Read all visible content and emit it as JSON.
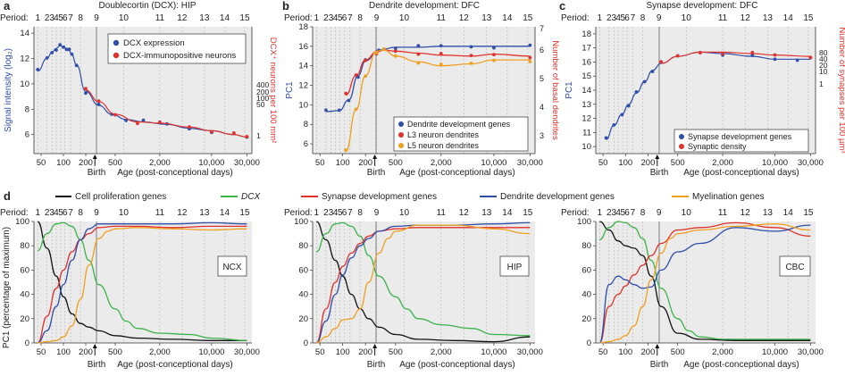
{
  "period_label": "Period:",
  "periods": [
    "1",
    "2",
    "3",
    "4",
    "5",
    "6",
    "7",
    "8",
    "9",
    "10",
    "11",
    "12",
    "13",
    "14",
    "15"
  ],
  "x_ticks": [
    "50",
    "100",
    "200",
    "500",
    "2,000",
    "10,000",
    "30,000"
  ],
  "birth_label": "Birth",
  "x_axis_label": "Age (post-conceptional days)",
  "colors": {
    "blue": "#2f4fa8",
    "red": "#e0322c",
    "orange": "#f0a020",
    "green": "#39b34a",
    "black": "#111111"
  },
  "panel_a": {
    "letter": "a",
    "title": "Doublecortin (DCX): HIP",
    "ylabel": "Signal intensity (log₂)",
    "y2label": "DCX⁺ neurons per 100 mm²",
    "y_ticks": [
      "6",
      "8",
      "10",
      "12",
      "14"
    ],
    "y2_ticks": [
      "400",
      "200",
      "100",
      "50",
      "1"
    ],
    "legend": [
      "DCX expression",
      "DCX-immunopositive neurons"
    ]
  },
  "panel_b": {
    "letter": "b",
    "title": "Dendrite development: DFC",
    "ylabel": "PC1",
    "y2label": "Number of basal dendrites",
    "y_ticks": [
      "6",
      "8",
      "10",
      "12",
      "14",
      "16",
      "18"
    ],
    "y2_ticks": [
      "3",
      "4",
      "5",
      "6",
      "7"
    ],
    "legend": [
      "Dendrite development genes",
      "L3 neuron dendrites",
      "L5 neuron dendrites"
    ]
  },
  "panel_c": {
    "letter": "c",
    "title": "Synapse development: DFC",
    "ylabel": "PC1",
    "y2label": "Number of synapses per 100 µm³",
    "y_ticks": [
      "10",
      "11",
      "12",
      "13",
      "14",
      "15",
      "16",
      "17",
      "18"
    ],
    "y2_ticks": [
      "80",
      "40",
      "20",
      "10",
      "1"
    ],
    "legend": [
      "Synapse development genes",
      "Synaptic density"
    ]
  },
  "panel_d": {
    "letter": "d",
    "legend": [
      "Cell proliferation genes",
      "DCX",
      "Synapse development genes",
      "Dendrite development genes",
      "Myelination genes"
    ],
    "ylabel": "PC1 (percentage of maximum)",
    "y_ticks": [
      "0",
      "20",
      "40",
      "60",
      "80",
      "100"
    ],
    "regions": [
      "NCX",
      "HIP",
      "CBC"
    ]
  },
  "chart_data": [
    {
      "type": "scatter",
      "panel": "a",
      "title": "Doublecortin (DCX): HIP",
      "xlabel": "Age (post-conceptional days)",
      "ylabel": "Signal intensity (log2)",
      "y2label": "DCX+ neurons per 100 mm2",
      "xscale": "log",
      "xlim": [
        40,
        35000
      ],
      "ylim": [
        4.5,
        14.5
      ],
      "series": [
        {
          "name": "DCX expression",
          "color": "blue",
          "fit": true,
          "x": [
            45,
            60,
            70,
            80,
            90,
            100,
            110,
            120,
            130,
            150,
            200,
            300,
            450,
            700,
            1200,
            2500,
            5000,
            10000,
            20000,
            30000
          ],
          "y": [
            11.0,
            12.0,
            12.5,
            12.8,
            13.0,
            12.9,
            12.8,
            12.6,
            12.3,
            11.5,
            9.4,
            8.3,
            7.6,
            7.2,
            7.0,
            6.8,
            6.5,
            6.3,
            6.0,
            5.8
          ]
        },
        {
          "name": "DCX-immunopositive neurons",
          "color": "red",
          "fit": true,
          "x": [
            200,
            300,
            500,
            1000,
            2000,
            5000,
            10000,
            20000,
            30000
          ],
          "y": [
            9.5,
            8.6,
            7.6,
            7.0,
            6.9,
            6.6,
            6.3,
            6.0,
            5.8
          ]
        }
      ]
    },
    {
      "type": "line",
      "panel": "b",
      "title": "Dendrite development: DFC",
      "xlabel": "Age (post-conceptional days)",
      "ylabel": "PC1",
      "y2label": "Number of basal dendrites",
      "xscale": "log",
      "xlim": [
        40,
        35000
      ],
      "ylim": [
        5,
        18
      ],
      "series": [
        {
          "name": "Dendrite development genes",
          "color": "blue",
          "x": [
            60,
            90,
            120,
            160,
            200,
            300,
            500,
            1000,
            2000,
            5000,
            10000,
            30000
          ],
          "y": [
            9.3,
            9.4,
            10.5,
            13.0,
            14.5,
            15.6,
            15.9,
            15.9,
            16.0,
            16.0,
            16.0,
            16.0
          ]
        },
        {
          "name": "L3 neuron dendrites",
          "color": "red",
          "x": [
            110,
            150,
            200,
            280,
            350,
            500,
            1000,
            2000,
            5000,
            10000,
            30000
          ],
          "y": [
            11.0,
            13.0,
            14.6,
            15.4,
            15.6,
            15.5,
            15.3,
            15.1,
            15.0,
            15.2,
            15.0
          ]
        },
        {
          "name": "L5 neuron dendrites",
          "color": "orange",
          "x": [
            110,
            150,
            200,
            280,
            350,
            500,
            1000,
            2000,
            5000,
            10000,
            30000
          ],
          "y": [
            5.2,
            9.5,
            13.0,
            15.5,
            15.6,
            15.0,
            14.4,
            14.0,
            14.2,
            14.6,
            14.6
          ]
        }
      ]
    },
    {
      "type": "scatter",
      "panel": "c",
      "title": "Synapse development: DFC",
      "xlabel": "Age (post-conceptional days)",
      "ylabel": "PC1",
      "y2label": "Number of synapses per 100 µm3",
      "xscale": "log",
      "xlim": [
        40,
        35000
      ],
      "ylim": [
        9.5,
        18.5
      ],
      "series": [
        {
          "name": "Synapse development genes",
          "color": "blue",
          "fit": true,
          "x": [
            55,
            70,
            90,
            110,
            140,
            180,
            230,
            300,
            500,
            1000,
            2000,
            5000,
            10000,
            20000,
            30000
          ],
          "y": [
            10.5,
            11.5,
            12.3,
            13.0,
            13.8,
            14.6,
            15.4,
            15.9,
            16.4,
            16.7,
            16.6,
            16.4,
            16.2,
            16.2,
            16.2
          ]
        },
        {
          "name": "Synaptic density",
          "color": "red",
          "fit": true,
          "x": [
            300,
            500,
            1000,
            2000,
            5000,
            10000,
            30000
          ],
          "y": [
            15.9,
            16.4,
            16.7,
            16.7,
            16.6,
            16.5,
            16.4
          ]
        }
      ]
    },
    {
      "type": "line",
      "panel": "d",
      "region": "NCX",
      "xscale": "log",
      "xlim": [
        40,
        35000
      ],
      "ylim": [
        0,
        100
      ],
      "series": [
        {
          "name": "Cell proliferation genes",
          "color": "black",
          "x": [
            45,
            60,
            80,
            100,
            130,
            170,
            220,
            300,
            500,
            1000,
            3000,
            10000,
            30000
          ],
          "y": [
            100,
            78,
            55,
            38,
            24,
            16,
            13,
            10,
            6,
            4,
            3,
            2,
            2
          ]
        },
        {
          "name": "DCX",
          "color": "green",
          "x": [
            45,
            60,
            80,
            100,
            130,
            170,
            220,
            300,
            500,
            700,
            1000,
            2000,
            5000,
            10000,
            30000
          ],
          "y": [
            76,
            90,
            98,
            99,
            96,
            85,
            68,
            48,
            28,
            18,
            12,
            8,
            7,
            4,
            2
          ]
        },
        {
          "name": "Synapse development genes",
          "color": "red",
          "x": [
            45,
            60,
            80,
            100,
            130,
            170,
            220,
            300,
            500,
            1000,
            3000,
            10000,
            30000
          ],
          "y": [
            0,
            22,
            45,
            60,
            75,
            85,
            90,
            95,
            96,
            96,
            95,
            96,
            96
          ]
        },
        {
          "name": "Dendrite development genes",
          "color": "blue",
          "x": [
            45,
            60,
            80,
            100,
            130,
            170,
            220,
            300,
            500,
            1000,
            3000,
            10000,
            30000
          ],
          "y": [
            0,
            10,
            30,
            48,
            68,
            85,
            94,
            98,
            98,
            98,
            98,
            99,
            98
          ]
        },
        {
          "name": "Myelination genes",
          "color": "orange",
          "x": [
            45,
            60,
            80,
            100,
            130,
            170,
            220,
            300,
            400,
            500,
            1000,
            3000,
            10000,
            30000
          ],
          "y": [
            0,
            1,
            2,
            5,
            14,
            36,
            64,
            86,
            92,
            94,
            95,
            94,
            93,
            94
          ]
        }
      ]
    },
    {
      "type": "line",
      "panel": "d",
      "region": "HIP",
      "xscale": "log",
      "xlim": [
        40,
        35000
      ],
      "ylim": [
        0,
        100
      ],
      "series": [
        {
          "name": "Cell proliferation genes",
          "color": "black",
          "x": [
            45,
            60,
            80,
            100,
            130,
            170,
            220,
            300,
            500,
            1000,
            3000,
            10000,
            30000
          ],
          "y": [
            100,
            85,
            68,
            55,
            40,
            28,
            20,
            13,
            7,
            3,
            2,
            1,
            5
          ]
        },
        {
          "name": "DCX",
          "color": "green",
          "x": [
            45,
            60,
            80,
            100,
            130,
            170,
            220,
            300,
            500,
            700,
            1000,
            2000,
            5000,
            10000,
            30000
          ],
          "y": [
            75,
            90,
            98,
            99,
            96,
            88,
            72,
            55,
            38,
            28,
            20,
            15,
            12,
            7,
            6
          ]
        },
        {
          "name": "Synapse development genes",
          "color": "red",
          "x": [
            45,
            60,
            80,
            100,
            130,
            170,
            220,
            300,
            500,
            1000,
            3000,
            10000,
            30000
          ],
          "y": [
            0,
            28,
            50,
            63,
            74,
            82,
            88,
            92,
            94,
            95,
            95,
            95,
            95
          ]
        },
        {
          "name": "Dendrite development genes",
          "color": "blue",
          "x": [
            45,
            60,
            80,
            100,
            130,
            170,
            220,
            300,
            500,
            1000,
            3000,
            10000,
            30000
          ],
          "y": [
            0,
            18,
            40,
            56,
            70,
            80,
            86,
            92,
            96,
            97,
            97,
            98,
            99
          ]
        },
        {
          "name": "Myelination genes",
          "color": "orange",
          "x": [
            45,
            60,
            80,
            100,
            130,
            170,
            220,
            300,
            400,
            500,
            1000,
            3000,
            10000,
            30000
          ],
          "y": [
            0,
            5,
            12,
            19,
            20,
            28,
            50,
            74,
            86,
            92,
            97,
            97,
            94,
            90
          ]
        }
      ]
    },
    {
      "type": "line",
      "panel": "d",
      "region": "CBC",
      "xscale": "log",
      "xlim": [
        40,
        35000
      ],
      "ylim": [
        0,
        100
      ],
      "series": [
        {
          "name": "Cell proliferation genes",
          "color": "black",
          "x": [
            45,
            60,
            80,
            100,
            130,
            170,
            220,
            300,
            500,
            1000,
            3000,
            10000,
            30000
          ],
          "y": [
            100,
            93,
            84,
            80,
            78,
            72,
            55,
            30,
            8,
            3,
            2,
            2,
            2
          ]
        },
        {
          "name": "DCX",
          "color": "green",
          "x": [
            45,
            60,
            80,
            100,
            130,
            170,
            220,
            300,
            500,
            700,
            1000,
            2000,
            5000,
            10000,
            30000
          ],
          "y": [
            85,
            95,
            100,
            99,
            95,
            86,
            68,
            45,
            20,
            10,
            5,
            3,
            3,
            3,
            3
          ]
        },
        {
          "name": "Synapse development genes",
          "color": "red",
          "x": [
            45,
            60,
            80,
            100,
            130,
            170,
            220,
            300,
            500,
            1000,
            3000,
            10000,
            30000
          ],
          "y": [
            0,
            30,
            40,
            47,
            56,
            64,
            72,
            82,
            93,
            95,
            99,
            95,
            88
          ]
        },
        {
          "name": "Dendrite development genes",
          "color": "blue",
          "x": [
            45,
            60,
            80,
            100,
            130,
            170,
            220,
            300,
            500,
            1000,
            3000,
            10000,
            30000
          ],
          "y": [
            0,
            48,
            55,
            52,
            48,
            45,
            46,
            60,
            75,
            82,
            95,
            92,
            97
          ]
        },
        {
          "name": "Myelination genes",
          "color": "orange",
          "x": [
            45,
            60,
            80,
            100,
            130,
            170,
            220,
            300,
            400,
            500,
            1000,
            3000,
            10000,
            30000
          ],
          "y": [
            0,
            1,
            3,
            6,
            14,
            30,
            52,
            74,
            86,
            90,
            93,
            96,
            98,
            93
          ]
        }
      ]
    }
  ]
}
